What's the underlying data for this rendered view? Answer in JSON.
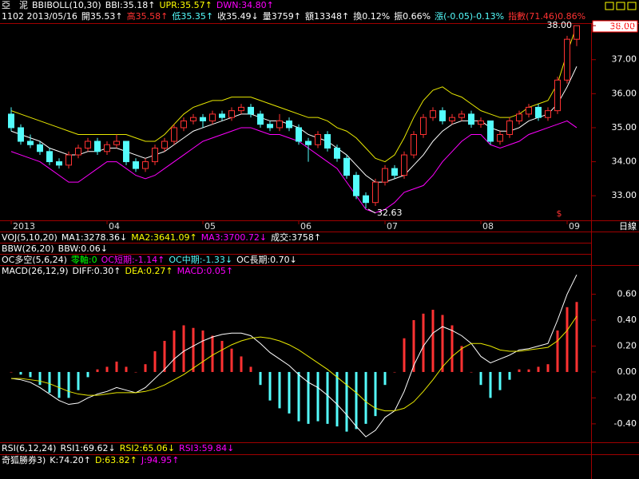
{
  "header": {
    "line1": [
      {
        "text": "亞　泥",
        "color": "#ffffff"
      },
      {
        "text": "BBIBOLL(10,30)",
        "color": "#ffffff"
      },
      {
        "text": "BBI:35.18↑",
        "color": "#ffffff"
      },
      {
        "text": "UPR:35.57↑",
        "color": "#ffff00"
      },
      {
        "text": "DWN:34.80↑",
        "color": "#ff00ff"
      }
    ],
    "quote": [
      {
        "text": "1102 2013/05/16",
        "color": "#ffffff"
      },
      {
        "text": "開35.53↑",
        "color": "#ffffff"
      },
      {
        "text": "高35.58↑",
        "color": "#ff3232"
      },
      {
        "text": "低35.35↑",
        "color": "#54fcfc"
      },
      {
        "text": "收35.49↓",
        "color": "#ffffff"
      },
      {
        "text": "量3759↑",
        "color": "#ffffff"
      },
      {
        "text": "額13348↑",
        "color": "#ffffff"
      },
      {
        "text": "換0.12%",
        "color": "#ffffff"
      },
      {
        "text": "振0.66%",
        "color": "#ffffff"
      },
      {
        "text": "漲(-0.05)-0.13%",
        "color": "#54fcfc"
      },
      {
        "text": "指數(71.46)0.86%",
        "color": "#ff3232"
      }
    ],
    "vol_row": [
      {
        "text": "VOJ(5,10,20)",
        "color": "#ffffff"
      },
      {
        "text": "MA1:3278.36↓",
        "color": "#ffffff"
      },
      {
        "text": "MA2:3641.09↑",
        "color": "#ffff00"
      },
      {
        "text": "MA3:3700.72↓",
        "color": "#ff00ff"
      },
      {
        "text": "成交:3758↑",
        "color": "#ffffff"
      }
    ],
    "bbw_row": [
      {
        "text": "BBW(26,20)",
        "color": "#ffffff"
      },
      {
        "text": "BBW:0.06↓",
        "color": "#ffffff"
      }
    ],
    "oc_row": [
      {
        "text": "OC多空(5,6,24)",
        "color": "#ffffff"
      },
      {
        "text": "零軸:0",
        "color": "#00ff00"
      },
      {
        "text": "OC短期:-1.14↑",
        "color": "#ff00ff"
      },
      {
        "text": "OC中期:-1.33↓",
        "color": "#54fcfc"
      },
      {
        "text": "OC長期:0.70↓",
        "color": "#ffffff"
      }
    ],
    "macd_row": [
      {
        "text": "MACD(26,12,9)",
        "color": "#ffffff"
      },
      {
        "text": "DIFF:0.30↑",
        "color": "#ffffff"
      },
      {
        "text": "DEA:0.27↑",
        "color": "#ffff00"
      },
      {
        "text": "MACD:0.05↑",
        "color": "#ff00ff"
      }
    ],
    "rsi_row": [
      {
        "text": "RSI(6,12,24)",
        "color": "#ffffff"
      },
      {
        "text": "RSI1:69.62↓",
        "color": "#ffffff"
      },
      {
        "text": "RSI2:65.06↓",
        "color": "#ffff00"
      },
      {
        "text": "RSI3:59.84↓",
        "color": "#ff00ff"
      }
    ],
    "kd_row": [
      {
        "text": "奇狐勝券3)",
        "color": "#ffffff"
      },
      {
        "text": "K:74.20↑",
        "color": "#ffffff"
      },
      {
        "text": "D:63.82↑",
        "color": "#ffff00"
      },
      {
        "text": "J:94.95↑",
        "color": "#ff00ff"
      }
    ],
    "period": "日線"
  },
  "chart_data": [
    {
      "type": "candlestick",
      "categories": [
        "2013",
        null,
        null,
        null,
        null,
        null,
        null,
        null,
        null,
        null,
        "04",
        null,
        null,
        null,
        null,
        null,
        null,
        null,
        null,
        null,
        "05",
        null,
        null,
        null,
        null,
        null,
        null,
        null,
        null,
        null,
        "06",
        null,
        null,
        null,
        null,
        null,
        null,
        null,
        null,
        "07",
        null,
        null,
        null,
        null,
        null,
        null,
        null,
        null,
        null,
        "08",
        null,
        null,
        null,
        null,
        null,
        null,
        null,
        null,
        "09",
        null
      ],
      "open": [
        35.4,
        35.0,
        34.6,
        34.5,
        34.3,
        34.0,
        33.9,
        34.2,
        34.4,
        34.6,
        34.3,
        34.5,
        34.6,
        34.0,
        33.8,
        34.0,
        34.4,
        34.6,
        35.0,
        35.2,
        35.3,
        35.2,
        35.4,
        35.3,
        35.5,
        35.6,
        35.4,
        35.1,
        35.0,
        35.2,
        35.0,
        34.6,
        34.5,
        34.8,
        34.4,
        34.1,
        33.6,
        33.0,
        32.8,
        33.4,
        33.8,
        33.6,
        34.2,
        34.8,
        35.3,
        35.5,
        35.2,
        35.3,
        35.4,
        35.1,
        35.2,
        34.6,
        34.8,
        35.2,
        35.4,
        35.6,
        35.3,
        35.5,
        36.4,
        37.6
      ],
      "high": [
        35.6,
        35.1,
        34.8,
        34.6,
        34.4,
        34.1,
        34.3,
        34.5,
        34.7,
        34.7,
        34.6,
        34.8,
        34.6,
        34.1,
        34.1,
        34.5,
        34.7,
        35.1,
        35.3,
        35.4,
        35.4,
        35.5,
        35.5,
        35.6,
        35.7,
        35.7,
        35.5,
        35.2,
        35.4,
        35.3,
        35.1,
        34.7,
        34.9,
        34.9,
        34.5,
        34.2,
        33.7,
        33.1,
        33.5,
        33.9,
        33.9,
        34.3,
        34.9,
        35.4,
        35.6,
        35.6,
        35.4,
        35.5,
        35.5,
        35.3,
        35.2,
        34.9,
        35.3,
        35.5,
        35.7,
        35.7,
        35.6,
        36.5,
        37.7,
        38.0
      ],
      "low": [
        34.9,
        34.5,
        34.4,
        34.2,
        33.9,
        33.8,
        33.8,
        34.1,
        34.3,
        34.2,
        34.2,
        34.4,
        33.9,
        33.7,
        33.7,
        33.9,
        34.3,
        34.5,
        34.9,
        35.1,
        35.0,
        35.1,
        35.2,
        35.2,
        35.4,
        35.3,
        35.0,
        34.9,
        34.9,
        34.9,
        34.5,
        34.0,
        34.4,
        34.3,
        34.0,
        33.5,
        32.9,
        32.63,
        32.7,
        33.3,
        33.5,
        33.5,
        34.1,
        34.7,
        35.2,
        35.1,
        35.1,
        35.2,
        35.0,
        35.0,
        34.5,
        34.5,
        34.7,
        35.1,
        35.3,
        35.2,
        35.2,
        35.4,
        36.3,
        37.4
      ],
      "close": [
        35.0,
        34.6,
        34.5,
        34.3,
        34.0,
        33.9,
        34.2,
        34.4,
        34.6,
        34.3,
        34.5,
        34.6,
        34.0,
        33.8,
        34.0,
        34.4,
        34.6,
        35.0,
        35.2,
        35.3,
        35.2,
        35.4,
        35.3,
        35.5,
        35.6,
        35.4,
        35.1,
        35.0,
        35.2,
        35.0,
        34.6,
        34.5,
        34.8,
        34.4,
        34.1,
        33.6,
        33.0,
        32.8,
        33.4,
        33.8,
        33.6,
        34.2,
        34.8,
        35.3,
        35.5,
        35.2,
        35.3,
        35.4,
        35.1,
        35.2,
        34.6,
        34.8,
        35.2,
        35.4,
        35.6,
        35.3,
        35.5,
        36.4,
        37.6,
        38.0
      ],
      "up_color": "#ff3232",
      "down_color": "#54fcfc",
      "series": [
        {
          "name": "UPR",
          "color": "#e8e800",
          "values": [
            35.5,
            35.4,
            35.3,
            35.2,
            35.1,
            35.0,
            34.9,
            34.8,
            34.8,
            34.8,
            34.8,
            34.8,
            34.8,
            34.7,
            34.6,
            34.6,
            34.8,
            35.1,
            35.4,
            35.6,
            35.7,
            35.8,
            35.8,
            35.9,
            35.9,
            35.9,
            35.8,
            35.7,
            35.6,
            35.5,
            35.4,
            35.3,
            35.3,
            35.2,
            35.0,
            34.9,
            34.7,
            34.4,
            34.1,
            34.0,
            34.2,
            34.7,
            35.3,
            35.8,
            36.1,
            36.2,
            36.0,
            35.9,
            35.7,
            35.5,
            35.4,
            35.3,
            35.3,
            35.4,
            35.6,
            35.7,
            35.8,
            36.3,
            37.2,
            38.0
          ]
        },
        {
          "name": "BBI",
          "color": "#ffffff",
          "values": [
            34.9,
            34.8,
            34.7,
            34.6,
            34.4,
            34.3,
            34.2,
            34.2,
            34.3,
            34.3,
            34.4,
            34.4,
            34.3,
            34.2,
            34.1,
            34.2,
            34.3,
            34.5,
            34.7,
            34.9,
            35.0,
            35.1,
            35.2,
            35.3,
            35.4,
            35.4,
            35.3,
            35.2,
            35.2,
            35.1,
            35.0,
            34.8,
            34.7,
            34.6,
            34.4,
            34.2,
            33.9,
            33.6,
            33.4,
            33.4,
            33.5,
            33.6,
            33.9,
            34.2,
            34.6,
            34.9,
            35.1,
            35.2,
            35.2,
            35.2,
            35.0,
            34.9,
            34.9,
            35.0,
            35.2,
            35.3,
            35.4,
            35.7,
            36.2,
            36.8
          ]
        },
        {
          "name": "DWN",
          "color": "#ff00ff",
          "values": [
            34.3,
            34.2,
            34.1,
            34.0,
            33.8,
            33.6,
            33.4,
            33.4,
            33.6,
            33.8,
            34.0,
            34.0,
            33.8,
            33.6,
            33.5,
            33.6,
            33.8,
            34.0,
            34.2,
            34.4,
            34.6,
            34.7,
            34.8,
            34.9,
            35.0,
            35.0,
            34.9,
            34.8,
            34.8,
            34.7,
            34.6,
            34.4,
            34.2,
            34.0,
            33.8,
            33.4,
            33.0,
            32.6,
            32.5,
            32.6,
            32.8,
            33.1,
            33.2,
            33.3,
            33.6,
            34.0,
            34.3,
            34.6,
            34.8,
            34.8,
            34.5,
            34.4,
            34.5,
            34.6,
            34.8,
            34.9,
            35.0,
            35.1,
            35.2,
            35.0
          ]
        }
      ],
      "ylim": [
        32.3,
        38.05
      ],
      "yticks": [
        {
          "value": 33,
          "label": "33.00"
        },
        {
          "value": 34,
          "label": "34.00"
        },
        {
          "value": 35,
          "label": "35.00"
        },
        {
          "value": 36,
          "label": "36.00"
        },
        {
          "value": 37,
          "label": "37.00"
        },
        {
          "value": 38,
          "label": "38.00"
        }
      ],
      "high_label": "38.00",
      "low_label": "32.63",
      "last_price_label": "38.00",
      "marker": "$"
    },
    {
      "type": "macd",
      "bars": {
        "name": "MACD",
        "up_color": "#ff3232",
        "down_color": "#54fcfc",
        "values": [
          0,
          -0.02,
          -0.04,
          -0.1,
          -0.16,
          -0.2,
          -0.2,
          -0.14,
          -0.04,
          0.02,
          0.04,
          0.08,
          0.04,
          0,
          0.06,
          0.16,
          0.24,
          0.32,
          0.36,
          0.34,
          0.32,
          0.28,
          0.24,
          0.18,
          0.12,
          0.04,
          -0.1,
          -0.22,
          -0.28,
          -0.32,
          -0.38,
          -0.4,
          -0.38,
          -0.4,
          -0.42,
          -0.46,
          -0.44,
          -0.4,
          -0.34,
          -0.1,
          0,
          0.26,
          0.4,
          0.45,
          0.48,
          0.44,
          0.36,
          0.2,
          0,
          -0.1,
          -0.2,
          -0.14,
          -0.06,
          0.02,
          0.02,
          0.04,
          0.06,
          0.32,
          0.5,
          0.54
        ]
      },
      "series": [
        {
          "name": "DIFF",
          "color": "#ffffff",
          "values": [
            -0.05,
            -0.06,
            -0.08,
            -0.12,
            -0.17,
            -0.22,
            -0.25,
            -0.24,
            -0.2,
            -0.17,
            -0.15,
            -0.12,
            -0.14,
            -0.16,
            -0.12,
            -0.05,
            0.02,
            0.1,
            0.16,
            0.2,
            0.24,
            0.27,
            0.29,
            0.3,
            0.3,
            0.28,
            0.22,
            0.15,
            0.1,
            0.05,
            -0.02,
            -0.08,
            -0.12,
            -0.18,
            -0.25,
            -0.33,
            -0.42,
            -0.5,
            -0.45,
            -0.35,
            -0.3,
            -0.15,
            0.05,
            0.2,
            0.3,
            0.35,
            0.32,
            0.28,
            0.22,
            0.12,
            0.07,
            0.1,
            0.13,
            0.17,
            0.18,
            0.2,
            0.22,
            0.4,
            0.6,
            0.75
          ]
        },
        {
          "name": "DEA",
          "color": "#e8e800",
          "values": [
            -0.05,
            -0.05,
            -0.06,
            -0.07,
            -0.09,
            -0.12,
            -0.15,
            -0.17,
            -0.18,
            -0.18,
            -0.17,
            -0.16,
            -0.16,
            -0.16,
            -0.15,
            -0.13,
            -0.1,
            -0.06,
            -0.02,
            0.03,
            0.08,
            0.13,
            0.17,
            0.21,
            0.24,
            0.26,
            0.27,
            0.26,
            0.24,
            0.21,
            0.17,
            0.12,
            0.07,
            0.02,
            -0.04,
            -0.1,
            -0.16,
            -0.23,
            -0.28,
            -0.3,
            -0.3,
            -0.28,
            -0.23,
            -0.15,
            -0.06,
            0.04,
            0.12,
            0.18,
            0.22,
            0.22,
            0.2,
            0.17,
            0.16,
            0.16,
            0.17,
            0.18,
            0.19,
            0.24,
            0.32,
            0.43
          ]
        }
      ],
      "ylim": [
        -0.53,
        0.825
      ],
      "yticks": [
        {
          "value": -0.4,
          "label": "-0.40"
        },
        {
          "value": -0.2,
          "label": "-0.20"
        },
        {
          "value": 0,
          "label": "0.00"
        },
        {
          "value": 0.2,
          "label": "0.20"
        },
        {
          "value": 0.4,
          "label": "0.40"
        },
        {
          "value": 0.6,
          "label": "0.60"
        }
      ]
    }
  ]
}
